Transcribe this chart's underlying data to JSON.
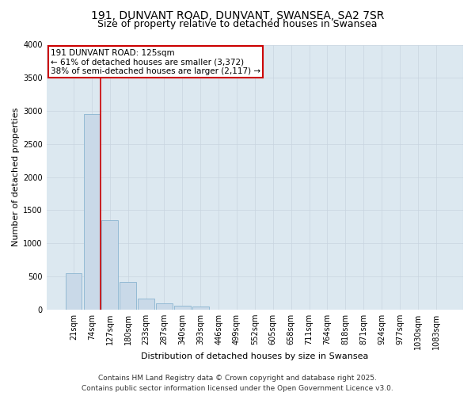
{
  "title_line1": "191, DUNVANT ROAD, DUNVANT, SWANSEA, SA2 7SR",
  "title_line2": "Size of property relative to detached houses in Swansea",
  "xlabel": "Distribution of detached houses by size in Swansea",
  "ylabel": "Number of detached properties",
  "categories": [
    "21sqm",
    "74sqm",
    "127sqm",
    "180sqm",
    "233sqm",
    "287sqm",
    "340sqm",
    "393sqm",
    "446sqm",
    "499sqm",
    "552sqm",
    "605sqm",
    "658sqm",
    "711sqm",
    "764sqm",
    "818sqm",
    "871sqm",
    "924sqm",
    "977sqm",
    "1030sqm",
    "1083sqm"
  ],
  "values": [
    550,
    2950,
    1350,
    420,
    165,
    95,
    60,
    40,
    0,
    0,
    0,
    0,
    0,
    0,
    0,
    0,
    0,
    0,
    0,
    0,
    0
  ],
  "bar_color": "#c9d9e8",
  "bar_edge_color": "#8ab4d0",
  "vline_x": 1.5,
  "vline_color": "#cc0000",
  "annotation_text": "191 DUNVANT ROAD: 125sqm\n← 61% of detached houses are smaller (3,372)\n38% of semi-detached houses are larger (2,117) →",
  "annotation_box_color": "#cc0000",
  "annotation_fill": "#ffffff",
  "ylim": [
    0,
    4000
  ],
  "yticks": [
    0,
    500,
    1000,
    1500,
    2000,
    2500,
    3000,
    3500,
    4000
  ],
  "grid_color": "#c8d4e0",
  "bg_color": "#dce8f0",
  "footer_line1": "Contains HM Land Registry data © Crown copyright and database right 2025.",
  "footer_line2": "Contains public sector information licensed under the Open Government Licence v3.0.",
  "title_fontsize": 10,
  "subtitle_fontsize": 9,
  "axis_label_fontsize": 8,
  "tick_fontsize": 7,
  "annotation_fontsize": 7.5,
  "footer_fontsize": 6.5
}
